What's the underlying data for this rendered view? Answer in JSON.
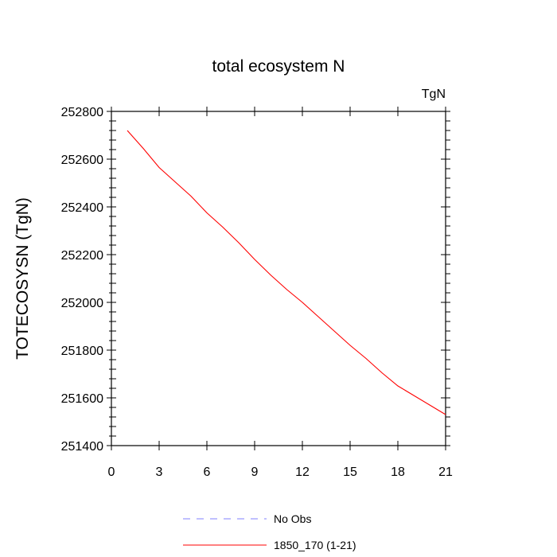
{
  "chart_data": {
    "type": "line",
    "title": "total ecosystem N",
    "units_label": "TgN",
    "ylabel": "TOTECOSYSN  (TgN)",
    "xlabel": "",
    "xlim": [
      0,
      21
    ],
    "ylim": [
      251400,
      252800
    ],
    "x_ticks": [
      0,
      3,
      6,
      9,
      12,
      15,
      18,
      21
    ],
    "y_ticks": [
      251400,
      251600,
      251800,
      252000,
      252200,
      252400,
      252600,
      252800
    ],
    "grid": false,
    "legend_position": "bottom",
    "series": [
      {
        "name": "No Obs",
        "color": "#8080ff",
        "dash": "dashed",
        "x": [],
        "y": []
      },
      {
        "name": "1850_170 (1-21)",
        "color": "#ff0000",
        "dash": "solid",
        "x": [
          1,
          2,
          3,
          4,
          5,
          6,
          7,
          8,
          9,
          10,
          11,
          12,
          13,
          14,
          15,
          16,
          17,
          18,
          19,
          20,
          21
        ],
        "y": [
          252720,
          252645,
          252565,
          252505,
          252445,
          252375,
          252315,
          252250,
          252180,
          252115,
          252055,
          252000,
          251940,
          251880,
          251820,
          251765,
          251705,
          251650,
          251610,
          251570,
          251530
        ]
      }
    ]
  }
}
